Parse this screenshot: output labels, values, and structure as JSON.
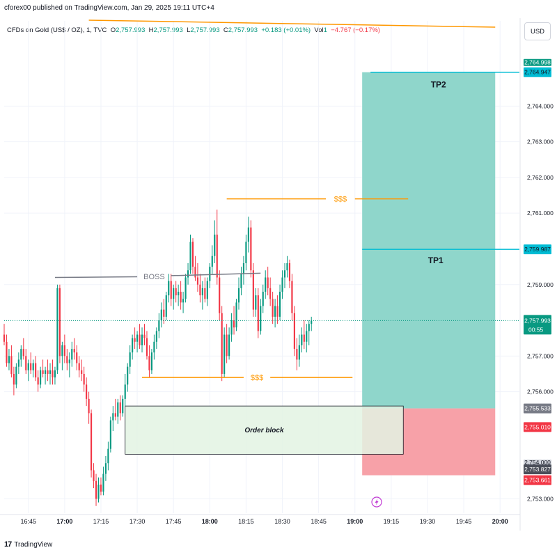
{
  "header": {
    "published": "cforex00 published on TradingView.com, Jan 29, 2025 19:11 UTC+4",
    "symbol": "CFDs on Gold (US$ / OZ), 1, TVC",
    "o_label": "O",
    "o_value": "2,757.993",
    "h_label": "H",
    "h_value": "2,757.993",
    "l_label": "L",
    "l_value": "2,757.993",
    "c_label": "C",
    "c_value": "2,757.993",
    "change": "+0.183 (+0.01%)",
    "vol_label": "Vol",
    "vol_value": "1",
    "vol_change": "−4.767 (−0.17%)"
  },
  "currency_button": "USD",
  "footer": {
    "brand": "TradingView"
  },
  "colors": {
    "up": "#089981",
    "down": "#f23645",
    "tp_zone": "#8fd6cb",
    "sl_zone": "#f7a1a8",
    "tp_line": "#00bcd4",
    "orange": "#ff9800",
    "boss_line": "#787b86",
    "order_block_fill": "#e3f3e3"
  },
  "annotations": {
    "tp2": "TP2",
    "tp1": "TP1",
    "liq_top": "$$$",
    "liq_bottom": "$$$",
    "boss": "BOSS",
    "order_block": "Order block"
  },
  "price_labels": {
    "top_hidden": "2,764.998",
    "tp2": "2,764.947",
    "tp1": "2,759.987",
    "current": "2,757.993",
    "countdown": "00:55",
    "entry": "2,755.533",
    "red_line": "2,755.010",
    "stop_hidden": "2,754.000",
    "stop_a": "2,753.827",
    "stop_b": "2,753.661"
  },
  "chart_data": {
    "type": "candlestick",
    "title": "CFDs on Gold (US$ / OZ), 1, TVC",
    "xlabel": "",
    "ylabel": "",
    "ylim": [
      2752.6,
      2765.8
    ],
    "y_ticks": [
      "2,753.000",
      "2,756.000",
      "2,757.000",
      "2,759.000",
      "2,761.000",
      "2,762.000",
      "2,763.000",
      "2,764.000"
    ],
    "y_tick_values": [
      2753,
      2756,
      2757,
      2759,
      2761,
      2762,
      2763,
      2764
    ],
    "x_ticks": [
      "16:45",
      "17:00",
      "17:15",
      "17:30",
      "17:45",
      "18:00",
      "18:15",
      "18:30",
      "18:45",
      "19:00",
      "19:15",
      "19:30",
      "19:45",
      "20:00"
    ],
    "x_tick_minutes": [
      -30,
      -15,
      0,
      15,
      30,
      45,
      60,
      75,
      90,
      105,
      120,
      135,
      150,
      165
    ],
    "x_tick_bold": [
      false,
      true,
      false,
      false,
      false,
      true,
      false,
      false,
      false,
      true,
      false,
      false,
      false,
      true
    ],
    "xlim_minutes": [
      -40,
      173
    ],
    "candles_start_minute": -40,
    "candles_ohlc": [
      [
        2757.6,
        2757.9,
        2757.3,
        2757.4
      ],
      [
        2757.4,
        2757.6,
        2756.7,
        2756.8
      ],
      [
        2756.8,
        2757.2,
        2756.6,
        2757.0
      ],
      [
        2757.0,
        2757.3,
        2756.4,
        2756.5
      ],
      [
        2756.5,
        2756.7,
        2755.9,
        2756.2
      ],
      [
        2756.2,
        2756.8,
        2756.1,
        2756.7
      ],
      [
        2756.7,
        2757.1,
        2756.5,
        2756.9
      ],
      [
        2756.9,
        2757.3,
        2756.7,
        2757.2
      ],
      [
        2757.2,
        2757.5,
        2756.9,
        2757.0
      ],
      [
        2757.0,
        2757.2,
        2756.5,
        2756.6
      ],
      [
        2756.6,
        2756.9,
        2756.3,
        2756.8
      ],
      [
        2756.8,
        2757.1,
        2756.5,
        2756.6
      ],
      [
        2756.6,
        2756.9,
        2756.4,
        2756.8
      ],
      [
        2756.8,
        2757.0,
        2756.3,
        2756.4
      ],
      [
        2756.4,
        2756.6,
        2756.0,
        2756.2
      ],
      [
        2756.2,
        2756.7,
        2756.1,
        2756.6
      ],
      [
        2756.6,
        2756.9,
        2756.4,
        2756.5
      ],
      [
        2756.5,
        2756.7,
        2756.2,
        2756.6
      ],
      [
        2756.6,
        2756.9,
        2756.3,
        2756.5
      ],
      [
        2756.5,
        2756.8,
        2756.2,
        2756.6
      ],
      [
        2756.6,
        2756.9,
        2756.2,
        2756.4
      ],
      [
        2756.4,
        2756.7,
        2756.2,
        2756.6
      ],
      [
        2756.6,
        2759.0,
        2756.5,
        2758.9
      ],
      [
        2758.9,
        2759.0,
        2756.8,
        2757.0
      ],
      [
        2757.0,
        2757.4,
        2756.6,
        2757.3
      ],
      [
        2757.3,
        2757.6,
        2756.8,
        2757.0
      ],
      [
        2757.0,
        2757.2,
        2756.6,
        2756.8
      ],
      [
        2756.8,
        2757.1,
        2756.4,
        2756.9
      ],
      [
        2756.9,
        2757.4,
        2756.7,
        2757.2
      ],
      [
        2757.2,
        2757.5,
        2756.9,
        2757.1
      ],
      [
        2757.1,
        2757.3,
        2756.6,
        2756.8
      ],
      [
        2756.8,
        2757.0,
        2756.4,
        2756.6
      ],
      [
        2756.6,
        2756.9,
        2756.3,
        2756.5
      ],
      [
        2756.5,
        2756.7,
        2756.0,
        2756.2
      ],
      [
        2756.2,
        2756.4,
        2755.6,
        2755.8
      ],
      [
        2755.8,
        2756.0,
        2755.1,
        2755.4
      ],
      [
        2755.4,
        2755.5,
        2753.6,
        2753.8
      ],
      [
        2753.8,
        2754.0,
        2753.3,
        2753.5
      ],
      [
        2753.5,
        2753.7,
        2752.8,
        2753.0
      ],
      [
        2753.0,
        2753.6,
        2752.9,
        2753.4
      ],
      [
        2753.4,
        2753.6,
        2753.1,
        2753.2
      ],
      [
        2753.2,
        2753.9,
        2753.1,
        2753.7
      ],
      [
        2753.7,
        2754.2,
        2753.5,
        2754.0
      ],
      [
        2754.0,
        2754.6,
        2753.8,
        2754.4
      ],
      [
        2754.4,
        2755.3,
        2754.3,
        2755.2
      ],
      [
        2755.2,
        2755.6,
        2754.9,
        2755.4
      ],
      [
        2755.4,
        2755.8,
        2755.2,
        2755.3
      ],
      [
        2755.3,
        2755.8,
        2755.1,
        2755.7
      ],
      [
        2755.7,
        2755.9,
        2755.2,
        2755.4
      ],
      [
        2755.4,
        2755.9,
        2755.3,
        2755.8
      ],
      [
        2755.8,
        2756.5,
        2755.6,
        2756.2
      ],
      [
        2756.2,
        2756.8,
        2756.0,
        2756.7
      ],
      [
        2756.7,
        2757.3,
        2756.5,
        2757.1
      ],
      [
        2757.1,
        2757.6,
        2756.9,
        2757.5
      ],
      [
        2757.5,
        2757.8,
        2757.2,
        2757.4
      ],
      [
        2757.4,
        2757.7,
        2757.1,
        2757.6
      ],
      [
        2757.6,
        2757.9,
        2757.2,
        2757.3
      ],
      [
        2757.3,
        2757.8,
        2757.1,
        2757.6
      ],
      [
        2757.6,
        2757.9,
        2757.3,
        2757.5
      ],
      [
        2757.5,
        2757.7,
        2756.9,
        2757.0
      ],
      [
        2757.0,
        2757.3,
        2756.4,
        2756.6
      ],
      [
        2756.6,
        2757.2,
        2756.5,
        2757.1
      ],
      [
        2757.1,
        2757.6,
        2756.9,
        2757.4
      ],
      [
        2757.4,
        2757.8,
        2757.2,
        2757.7
      ],
      [
        2757.7,
        2758.2,
        2757.5,
        2758.0
      ],
      [
        2758.0,
        2758.5,
        2757.8,
        2758.3
      ],
      [
        2758.3,
        2758.6,
        2757.9,
        2758.1
      ],
      [
        2758.1,
        2758.8,
        2758.0,
        2758.7
      ],
      [
        2758.7,
        2759.3,
        2758.5,
        2759.1
      ],
      [
        2759.1,
        2759.3,
        2758.4,
        2758.6
      ],
      [
        2758.6,
        2759.0,
        2758.3,
        2758.9
      ],
      [
        2758.9,
        2759.1,
        2758.5,
        2758.7
      ],
      [
        2758.7,
        2759.0,
        2758.4,
        2758.8
      ],
      [
        2758.8,
        2759.1,
        2758.3,
        2758.5
      ],
      [
        2758.5,
        2758.8,
        2758.2,
        2758.6
      ],
      [
        2758.6,
        2759.3,
        2758.5,
        2759.2
      ],
      [
        2759.2,
        2759.6,
        2759.0,
        2759.4
      ],
      [
        2759.4,
        2760.4,
        2759.3,
        2760.2
      ],
      [
        2760.2,
        2760.3,
        2759.3,
        2759.5
      ],
      [
        2759.5,
        2759.8,
        2759.1,
        2759.2
      ],
      [
        2759.2,
        2759.6,
        2758.8,
        2759.0
      ],
      [
        2759.0,
        2759.3,
        2758.5,
        2758.7
      ],
      [
        2758.7,
        2759.1,
        2758.3,
        2758.9
      ],
      [
        2758.9,
        2759.2,
        2758.5,
        2758.6
      ],
      [
        2758.6,
        2759.2,
        2758.4,
        2759.1
      ],
      [
        2759.1,
        2759.6,
        2758.9,
        2759.5
      ],
      [
        2759.5,
        2760.1,
        2759.3,
        2759.8
      ],
      [
        2759.8,
        2760.8,
        2759.6,
        2760.4
      ],
      [
        2760.4,
        2761.1,
        2759.0,
        2759.2
      ],
      [
        2759.2,
        2759.4,
        2758.0,
        2758.2
      ],
      [
        2758.2,
        2758.4,
        2756.3,
        2756.5
      ],
      [
        2756.5,
        2757.8,
        2756.4,
        2757.6
      ],
      [
        2757.6,
        2757.9,
        2756.8,
        2757.0
      ],
      [
        2757.0,
        2757.8,
        2756.9,
        2757.6
      ],
      [
        2757.6,
        2758.2,
        2757.4,
        2758.0
      ],
      [
        2758.0,
        2758.4,
        2757.6,
        2757.8
      ],
      [
        2757.8,
        2758.6,
        2757.7,
        2758.5
      ],
      [
        2758.5,
        2759.2,
        2758.3,
        2758.9
      ],
      [
        2758.9,
        2759.5,
        2758.7,
        2759.3
      ],
      [
        2759.3,
        2759.8,
        2759.0,
        2759.6
      ],
      [
        2759.6,
        2760.4,
        2759.4,
        2760.2
      ],
      [
        2760.2,
        2760.9,
        2759.9,
        2760.6
      ],
      [
        2760.6,
        2760.8,
        2759.2,
        2759.4
      ],
      [
        2759.4,
        2759.6,
        2758.1,
        2758.3
      ],
      [
        2758.3,
        2758.9,
        2758.1,
        2758.7
      ],
      [
        2758.7,
        2758.9,
        2757.5,
        2757.7
      ],
      [
        2757.7,
        2758.6,
        2757.6,
        2758.4
      ],
      [
        2758.4,
        2759.0,
        2758.2,
        2758.8
      ],
      [
        2758.8,
        2759.4,
        2758.6,
        2759.2
      ],
      [
        2759.2,
        2759.5,
        2758.7,
        2758.9
      ],
      [
        2758.9,
        2759.2,
        2758.4,
        2758.6
      ],
      [
        2758.6,
        2758.8,
        2757.9,
        2758.1
      ],
      [
        2758.1,
        2758.6,
        2757.8,
        2758.4
      ],
      [
        2758.4,
        2758.7,
        2757.9,
        2758.1
      ],
      [
        2758.1,
        2759.0,
        2758.0,
        2758.8
      ],
      [
        2758.8,
        2759.4,
        2758.6,
        2759.2
      ],
      [
        2759.2,
        2759.6,
        2758.9,
        2759.4
      ],
      [
        2759.4,
        2759.8,
        2759.2,
        2759.6
      ],
      [
        2759.6,
        2759.7,
        2758.9,
        2759.1
      ],
      [
        2759.1,
        2759.3,
        2758.0,
        2758.2
      ],
      [
        2758.2,
        2758.4,
        2757.0,
        2757.2
      ],
      [
        2757.2,
        2757.5,
        2756.6,
        2756.9
      ],
      [
        2756.9,
        2757.6,
        2756.7,
        2757.3
      ],
      [
        2757.3,
        2757.8,
        2757.1,
        2757.6
      ],
      [
        2757.6,
        2758.0,
        2757.2,
        2757.4
      ],
      [
        2757.4,
        2757.9,
        2757.1,
        2757.7
      ],
      [
        2757.7,
        2758.0,
        2757.3,
        2757.9
      ],
      [
        2757.9,
        2758.1,
        2757.7,
        2757.99
      ]
    ]
  }
}
